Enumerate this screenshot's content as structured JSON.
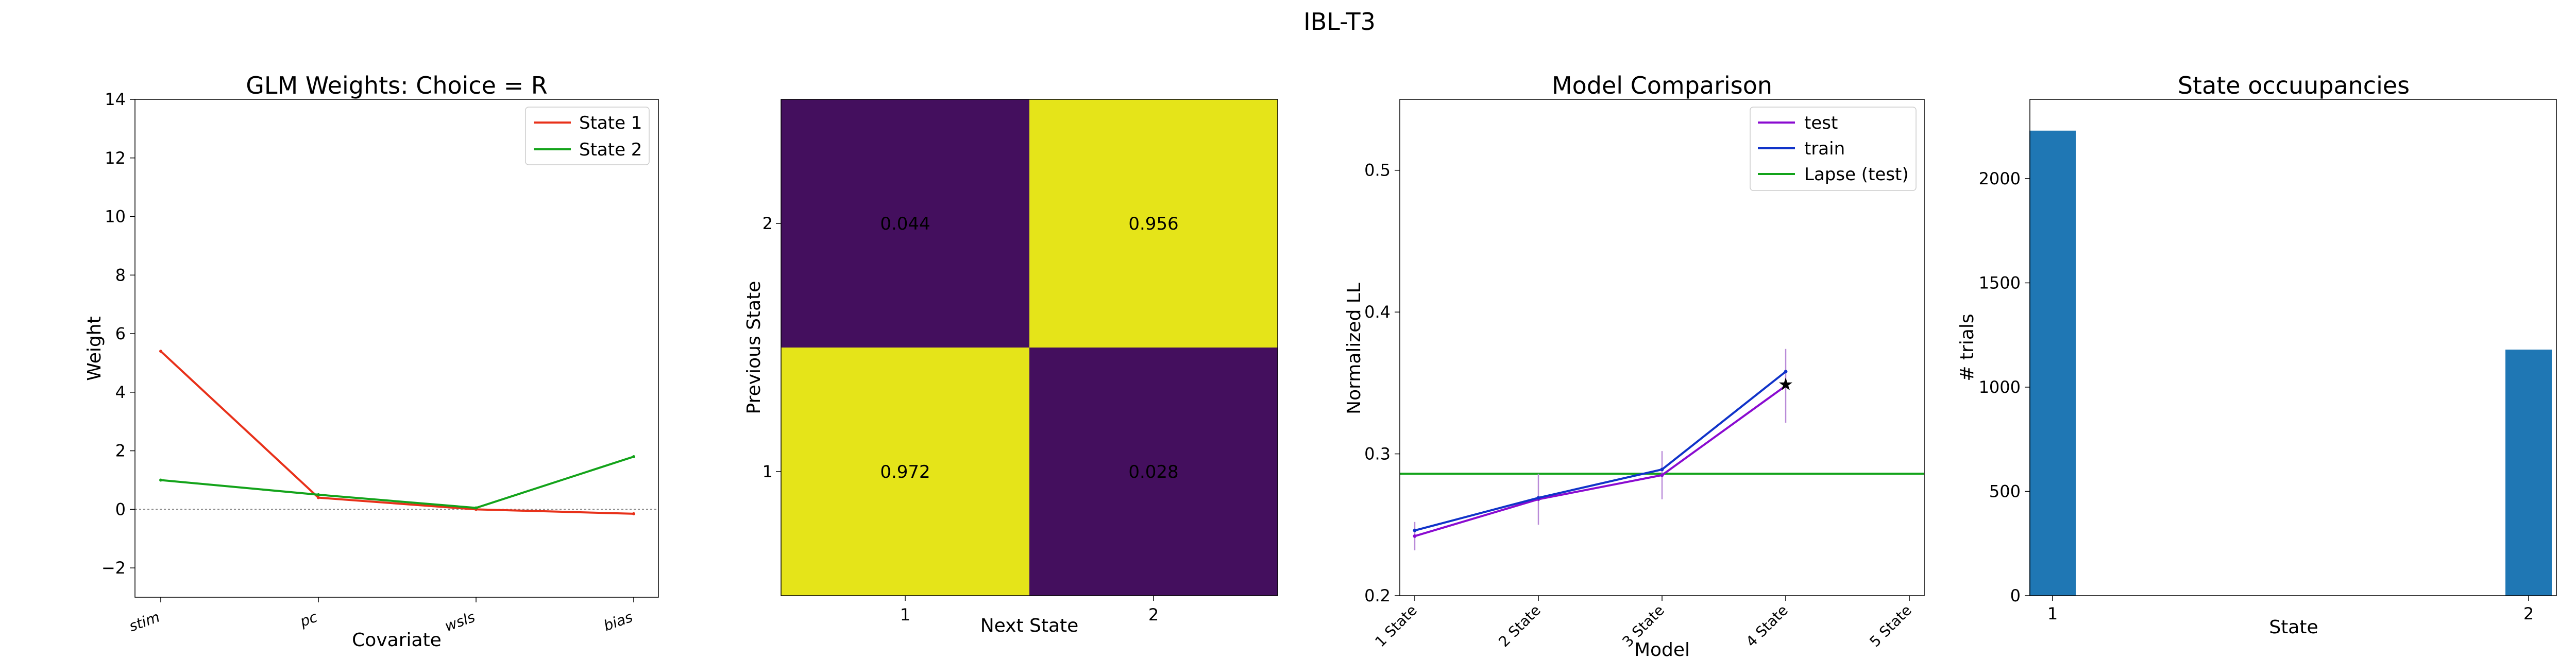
{
  "figure_title": "IBL-T3",
  "colors": {
    "state1": "#e8311a",
    "state2": "#13a31a",
    "test": "#8a0bd0",
    "train": "#1033c9",
    "lapse": "#13a31a",
    "bar": "#1f77b4",
    "heat_low": "#440f5e",
    "heat_high": "#e5e419",
    "errorbar": "#b98bd8"
  },
  "chart_data": [
    {
      "type": "line",
      "title": "GLM Weights: Choice = R",
      "xlabel": "Covariate",
      "ylabel": "Weight",
      "categories": [
        "stim",
        "pc",
        "wsls",
        "bias"
      ],
      "ylim": [
        -3,
        14
      ],
      "yticks": [
        -2,
        0,
        2,
        4,
        6,
        8,
        10,
        12,
        14
      ],
      "ytick_labels": [
        "−2",
        "0",
        "2",
        "4",
        "6",
        "8",
        "10",
        "12",
        "14"
      ],
      "zero_line": true,
      "legend_position": "top-right",
      "series": [
        {
          "name": "State 1",
          "color_key": "state1",
          "values": [
            5.4,
            0.4,
            0.0,
            -0.15
          ]
        },
        {
          "name": "State 2",
          "color_key": "state2",
          "values": [
            1.0,
            0.5,
            0.05,
            1.8
          ]
        }
      ]
    },
    {
      "type": "heatmap",
      "xlabel": "Next State",
      "ylabel": "Previous State",
      "x_categories": [
        "1",
        "2"
      ],
      "y_categories": [
        "2",
        "1"
      ],
      "values": [
        [
          0.044,
          0.956
        ],
        [
          0.972,
          0.028
        ]
      ],
      "value_labels": [
        [
          "0.044",
          "0.956"
        ],
        [
          "0.972",
          "0.028"
        ]
      ]
    },
    {
      "type": "line",
      "title": "Model Comparison",
      "xlabel": "Model",
      "ylabel": "Normalized LL",
      "categories": [
        "1 State",
        "2 State",
        "3 State",
        "4 State",
        "5 State"
      ],
      "ylim": [
        0.2,
        0.55
      ],
      "yticks": [
        0.2,
        0.3,
        0.4,
        0.5
      ],
      "ytick_labels": [
        "0.2",
        "0.3",
        "0.4",
        "0.5"
      ],
      "legend_position": "top-right",
      "series": [
        {
          "name": "test",
          "color_key": "test",
          "x": [
            1,
            2,
            3,
            4
          ],
          "values": [
            0.242,
            0.268,
            0.285,
            0.348
          ],
          "err": [
            0.01,
            0.018,
            0.017,
            0.026
          ]
        },
        {
          "name": "train",
          "color_key": "train",
          "x": [
            1,
            2,
            3,
            4
          ],
          "values": [
            0.246,
            0.269,
            0.289,
            0.358
          ]
        },
        {
          "name": "Lapse (test)",
          "color_key": "lapse",
          "hline": 0.286
        }
      ],
      "best_marker": {
        "x": 4,
        "value": 0.35,
        "symbol": "★"
      }
    },
    {
      "type": "bar",
      "title": "State occuupancies",
      "xlabel": "State",
      "ylabel": "# trials",
      "categories": [
        "1",
        "2"
      ],
      "values": [
        2230,
        1180
      ],
      "ylim": [
        0,
        2380
      ],
      "yticks": [
        0,
        500,
        1000,
        1500,
        2000
      ],
      "ytick_labels": [
        "0",
        "500",
        "1000",
        "1500",
        "2000"
      ]
    }
  ]
}
